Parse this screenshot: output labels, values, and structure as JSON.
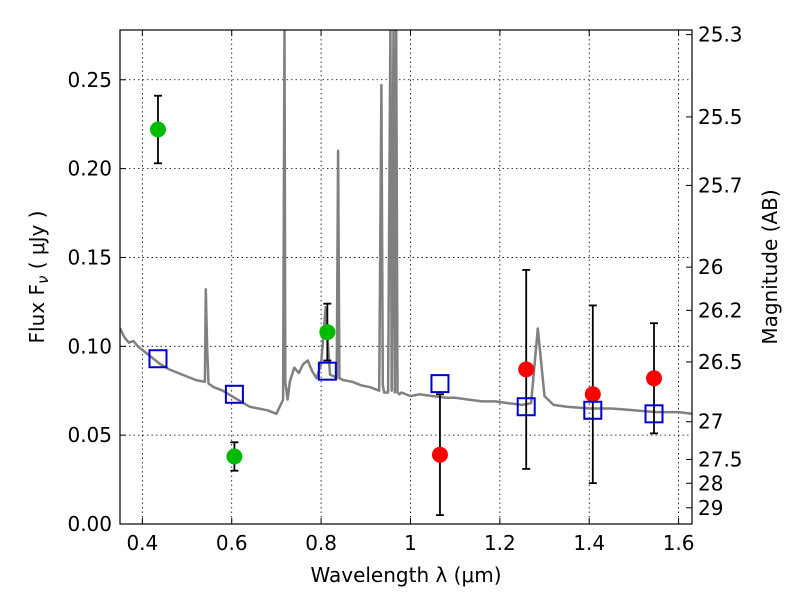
{
  "chart_data": {
    "type": "scatter",
    "xlabel": "Wavelength  λ (μm)",
    "ylabel": "Flux  F",
    "ylabel_sub": "ν",
    "ylabel_unit": "  ( μJy )",
    "ylabel_right": "Magnitude (AB)",
    "xlim": [
      0.35,
      1.63
    ],
    "ylim": [
      0.0,
      0.278
    ],
    "grid": true,
    "x_ticks": [
      0.4,
      0.6,
      0.8,
      1.0,
      1.2,
      1.4,
      1.6
    ],
    "x_tick_labels": [
      "0.4",
      "0.6",
      "0.8",
      "1",
      "1.2",
      "1.4",
      "1.6"
    ],
    "y_ticks": [
      0.0,
      0.05,
      0.1,
      0.15,
      0.2,
      0.25
    ],
    "y_tick_labels": [
      "0.00",
      "0.05",
      "0.10",
      "0.15",
      "0.20",
      "0.25"
    ],
    "right_ticks": [
      {
        "mag": 25.3,
        "label": "25.3"
      },
      {
        "mag": 25.5,
        "label": "25.5"
      },
      {
        "mag": 25.7,
        "label": "25.7"
      },
      {
        "mag": 26.0,
        "label": "26"
      },
      {
        "mag": 26.2,
        "label": "26.2"
      },
      {
        "mag": 26.5,
        "label": "26.5"
      },
      {
        "mag": 27.0,
        "label": "27"
      },
      {
        "mag": 27.5,
        "label": "27.5"
      },
      {
        "mag": 28.0,
        "label": "28"
      },
      {
        "mag": 29.0,
        "label": "29"
      }
    ],
    "series": [
      {
        "marker": "circle",
        "color": "#00bb00",
        "x": [
          0.435,
          0.606,
          0.814
        ],
        "y": [
          0.222,
          0.038,
          0.108
        ],
        "yerr": [
          0.019,
          0.008,
          0.016
        ]
      },
      {
        "marker": "circle",
        "color": "#ff0000",
        "x": [
          1.066,
          1.259,
          1.408,
          1.545
        ],
        "y": [
          0.039,
          0.087,
          0.073,
          0.082
        ],
        "yerr": [
          0.034,
          0.056,
          0.05,
          0.031
        ]
      },
      {
        "marker": "square",
        "color": "#0000cc",
        "x": [
          0.435,
          0.606,
          0.814,
          1.066,
          1.259,
          1.408,
          1.545
        ],
        "y": [
          0.093,
          0.073,
          0.086,
          0.079,
          0.066,
          0.064,
          0.062
        ]
      }
    ],
    "model_spectrum": {
      "color": "#808080",
      "x": [
        0.35,
        0.36,
        0.37,
        0.38,
        0.39,
        0.4,
        0.42,
        0.44,
        0.46,
        0.48,
        0.5,
        0.52,
        0.54,
        0.542,
        0.545,
        0.548,
        0.56,
        0.58,
        0.6,
        0.62,
        0.64,
        0.66,
        0.68,
        0.7,
        0.715,
        0.718,
        0.72,
        0.725,
        0.73,
        0.74,
        0.75,
        0.76,
        0.77,
        0.78,
        0.79,
        0.8,
        0.81,
        0.82,
        0.83,
        0.835,
        0.838,
        0.841,
        0.85,
        0.87,
        0.89,
        0.91,
        0.93,
        0.935,
        0.938,
        0.941,
        0.95,
        0.955,
        0.958,
        0.962,
        0.965,
        0.968,
        0.971,
        0.975,
        0.98,
        1.0,
        1.02,
        1.05,
        1.08,
        1.1,
        1.13,
        1.16,
        1.19,
        1.22,
        1.25,
        1.27,
        1.285,
        1.3,
        1.32,
        1.35,
        1.4,
        1.45,
        1.5,
        1.55,
        1.6,
        1.63
      ],
      "y": [
        0.11,
        0.105,
        0.102,
        0.103,
        0.1,
        0.098,
        0.094,
        0.09,
        0.087,
        0.085,
        0.083,
        0.081,
        0.08,
        0.132,
        0.1,
        0.079,
        0.077,
        0.075,
        0.072,
        0.069,
        0.066,
        0.065,
        0.064,
        0.062,
        0.07,
        0.28,
        0.08,
        0.07,
        0.08,
        0.088,
        0.085,
        0.09,
        0.092,
        0.086,
        0.082,
        0.09,
        0.122,
        0.084,
        0.083,
        0.082,
        0.21,
        0.082,
        0.081,
        0.08,
        0.078,
        0.077,
        0.075,
        0.247,
        0.078,
        0.074,
        0.074,
        0.28,
        0.075,
        0.28,
        0.074,
        0.28,
        0.074,
        0.073,
        0.074,
        0.072,
        0.073,
        0.072,
        0.071,
        0.071,
        0.07,
        0.069,
        0.069,
        0.068,
        0.067,
        0.068,
        0.11,
        0.072,
        0.067,
        0.066,
        0.065,
        0.065,
        0.064,
        0.063,
        0.063,
        0.062
      ]
    }
  }
}
